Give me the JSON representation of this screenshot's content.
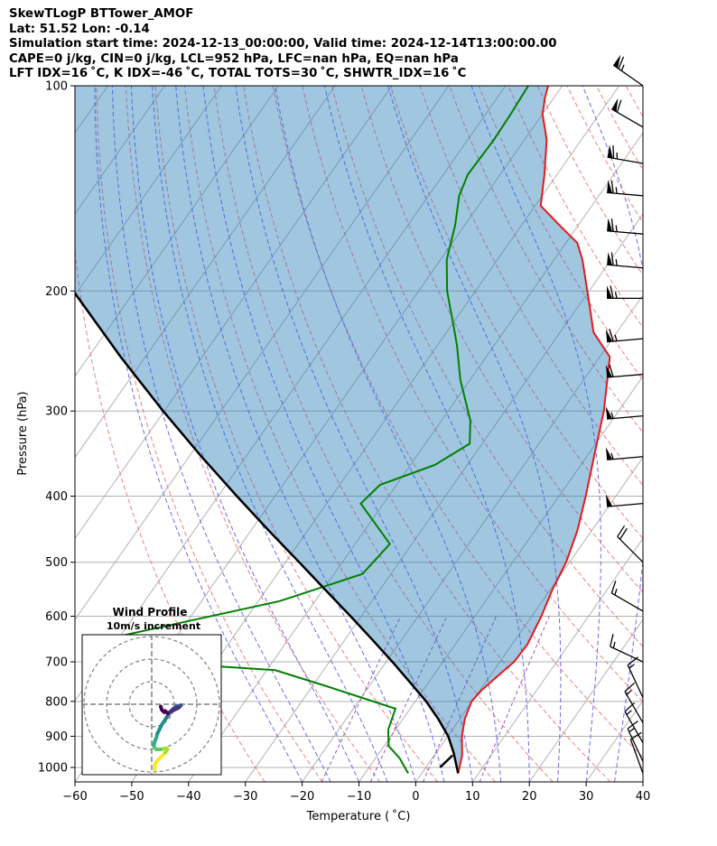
{
  "title_lines": [
    "SkewTLogP BTTower_AMOF",
    "Lat: 51.52   Lon: -0.14",
    "Simulation start time: 2024-12-13_00:00:00, Valid time: 2024-12-14T13:00:00.00",
    "CAPE=0 j/kg, CIN=0 j/kg, LCL=952 hPa, LFC=nan hPa, EQ=nan hPa",
    "LFT IDX=16 ˚C, K IDX=-46 ˚C, TOTAL TOTS=30 ˚C, SHWTR_IDX=16 ˚C"
  ],
  "chart_data": [
    {
      "type": "line",
      "subtype": "skew-t log-p",
      "xlabel": "Temperature ( ˚C)",
      "ylabel": "Pressure (hPa)",
      "xlim": [
        -60,
        40
      ],
      "ylim": [
        1050,
        100
      ],
      "y_scale": "log",
      "x_ticks": [
        -60,
        -50,
        -40,
        -30,
        -20,
        -10,
        0,
        10,
        20,
        30,
        40
      ],
      "x_tick_labels": [
        "−60",
        "−50",
        "−40",
        "−30",
        "−20",
        "−10",
        "0",
        "10",
        "20",
        "30",
        "40"
      ],
      "y_ticks": [
        1000,
        900,
        800,
        700,
        600,
        500,
        400,
        300,
        200,
        100
      ],
      "y_tick_labels": [
        "1000",
        "900",
        "800",
        "700",
        "600",
        "500",
        "400",
        "300",
        "200",
        "100"
      ],
      "grid": true,
      "background_lines": {
        "isotherms_color": "#aaaaaa",
        "dry_adiabats_color": "#f08080",
        "moist_adiabats_color": "#6b6bf0",
        "mixing_ratio_color": "#9b59b6"
      },
      "series": [
        {
          "role": "temperature",
          "color": "#e31a1c",
          "points": [
            [
              6.4,
              1020
            ],
            [
              4.9,
              960
            ],
            [
              2.5,
              900
            ],
            [
              0.9,
              850
            ],
            [
              -0.1,
              800
            ],
            [
              0.3,
              770
            ],
            [
              1.2,
              740
            ],
            [
              2.5,
              700
            ],
            [
              2.7,
              660
            ],
            [
              1.7,
              600
            ],
            [
              0.4,
              550
            ],
            [
              -0.6,
              500
            ],
            [
              -2.5,
              450
            ],
            [
              -5.3,
              400
            ],
            [
              -8.7,
              350
            ],
            [
              -12.6,
              300
            ],
            [
              -18.2,
              250
            ],
            [
              -24.1,
              230
            ],
            [
              -30.3,
              200
            ],
            [
              -35.0,
              180
            ],
            [
              -38.0,
              170
            ],
            [
              -43.4,
              160
            ],
            [
              -49.0,
              150
            ],
            [
              -52.2,
              135
            ],
            [
              -56.1,
              120
            ],
            [
              -60.0,
              110
            ],
            [
              -61.6,
              104
            ],
            [
              -62.5,
              100
            ]
          ]
        },
        {
          "role": "dewpoint",
          "color": "#008000",
          "points": [
            [
              -2.4,
              1020
            ],
            [
              -5.7,
              970
            ],
            [
              -9.2,
              930
            ],
            [
              -11.3,
              880
            ],
            [
              -12.6,
              820
            ],
            [
              -27.5,
              760
            ],
            [
              -38.5,
              720
            ],
            [
              -61.5,
              700
            ],
            [
              -72.7,
              650
            ],
            [
              -46.2,
              570
            ],
            [
              -35.0,
              520
            ],
            [
              -33.9,
              470
            ],
            [
              -44.0,
              410
            ],
            [
              -42.9,
              385
            ],
            [
              -35.7,
              360
            ],
            [
              -32.2,
              335
            ],
            [
              -34.9,
              310
            ],
            [
              -41.7,
              270
            ],
            [
              -46.6,
              240
            ],
            [
              -50.6,
              220
            ],
            [
              -55.0,
              200
            ],
            [
              -58.9,
              180
            ],
            [
              -61.7,
              160
            ],
            [
              -64.6,
              145
            ],
            [
              -65.7,
              135
            ],
            [
              -65.4,
              120
            ],
            [
              -65.6,
              110
            ],
            [
              -66.0,
              100
            ]
          ]
        },
        {
          "role": "parcel",
          "color": "#000000",
          "points": [
            [
              6.4,
              1020
            ],
            [
              3.1,
              952
            ],
            [
              0.1,
              900
            ],
            [
              -3.7,
              850
            ],
            [
              -8.1,
              800
            ],
            [
              -13.3,
              750
            ],
            [
              -18.9,
              700
            ],
            [
              -25.1,
              650
            ],
            [
              -31.9,
              600
            ],
            [
              -39.4,
              550
            ],
            [
              -47.6,
              500
            ],
            [
              -56.7,
              450
            ],
            [
              -66.7,
              400
            ],
            [
              -77.8,
              350
            ],
            [
              -90.2,
              300
            ],
            [
              -104.3,
              250
            ],
            [
              -120.8,
              200
            ],
            [
              -128.2,
              180
            ],
            [
              -135.5,
              160
            ],
            [
              -143.8,
              140
            ],
            [
              -153.5,
              120
            ],
            [
              -165.3,
              100
            ]
          ]
        }
      ],
      "surface_marker": {
        "t": 2.5,
        "p": 1000
      }
    },
    {
      "type": "scatter",
      "subtype": "hodograph",
      "title": "Wind Profile",
      "subtitle": "10m/s increment",
      "ring_increment_ms": 10,
      "points_uv": [
        [
          1.3,
          -28.8
        ],
        [
          1.5,
          -26.5
        ],
        [
          2.5,
          -25
        ],
        [
          4,
          -23.5
        ],
        [
          6,
          -21.5
        ],
        [
          7,
          -20
        ],
        [
          6.5,
          -19.5
        ],
        [
          4,
          -20
        ],
        [
          2,
          -20
        ],
        [
          1,
          -19
        ],
        [
          1,
          -18
        ],
        [
          1.5,
          -16
        ],
        [
          2,
          -15
        ],
        [
          2.5,
          -13
        ],
        [
          3.5,
          -11
        ],
        [
          4.5,
          -9
        ],
        [
          5.5,
          -7.5
        ],
        [
          6.5,
          -6
        ],
        [
          7.5,
          -4.5
        ],
        [
          8.5,
          -3
        ],
        [
          9.5,
          -2
        ],
        [
          11,
          -1
        ],
        [
          13,
          -0.5
        ],
        [
          12,
          -1.5
        ],
        [
          11,
          -2
        ],
        [
          9,
          -3
        ],
        [
          7,
          -4
        ],
        [
          6,
          -3
        ],
        [
          5.5,
          -3.5
        ],
        [
          4.5,
          -2.5
        ],
        [
          4,
          -1
        ]
      ]
    },
    {
      "type": "wind_barbs",
      "levels": [
        {
          "p": 100,
          "speed_kt": 65,
          "dir_deg": 305
        },
        {
          "p": 115,
          "speed_kt": 60,
          "dir_deg": 300
        },
        {
          "p": 130,
          "speed_kt": 65,
          "dir_deg": 280
        },
        {
          "p": 145,
          "speed_kt": 65,
          "dir_deg": 275
        },
        {
          "p": 165,
          "speed_kt": 65,
          "dir_deg": 275
        },
        {
          "p": 185,
          "speed_kt": 65,
          "dir_deg": 275
        },
        {
          "p": 205,
          "speed_kt": 65,
          "dir_deg": 270
        },
        {
          "p": 235,
          "speed_kt": 65,
          "dir_deg": 265
        },
        {
          "p": 265,
          "speed_kt": 60,
          "dir_deg": 265
        },
        {
          "p": 305,
          "speed_kt": 55,
          "dir_deg": 265
        },
        {
          "p": 350,
          "speed_kt": 55,
          "dir_deg": 265
        },
        {
          "p": 410,
          "speed_kt": 50,
          "dir_deg": 265
        },
        {
          "p": 500,
          "speed_kt": 20,
          "dir_deg": 315
        },
        {
          "p": 590,
          "speed_kt": 15,
          "dir_deg": 300
        },
        {
          "p": 700,
          "speed_kt": 15,
          "dir_deg": 295
        },
        {
          "p": 790,
          "speed_kt": 15,
          "dir_deg": 335
        },
        {
          "p": 860,
          "speed_kt": 15,
          "dir_deg": 330
        },
        {
          "p": 920,
          "speed_kt": 15,
          "dir_deg": 330
        },
        {
          "p": 980,
          "speed_kt": 15,
          "dir_deg": 335
        },
        {
          "p": 1020,
          "speed_kt": 10,
          "dir_deg": 340
        }
      ]
    }
  ]
}
